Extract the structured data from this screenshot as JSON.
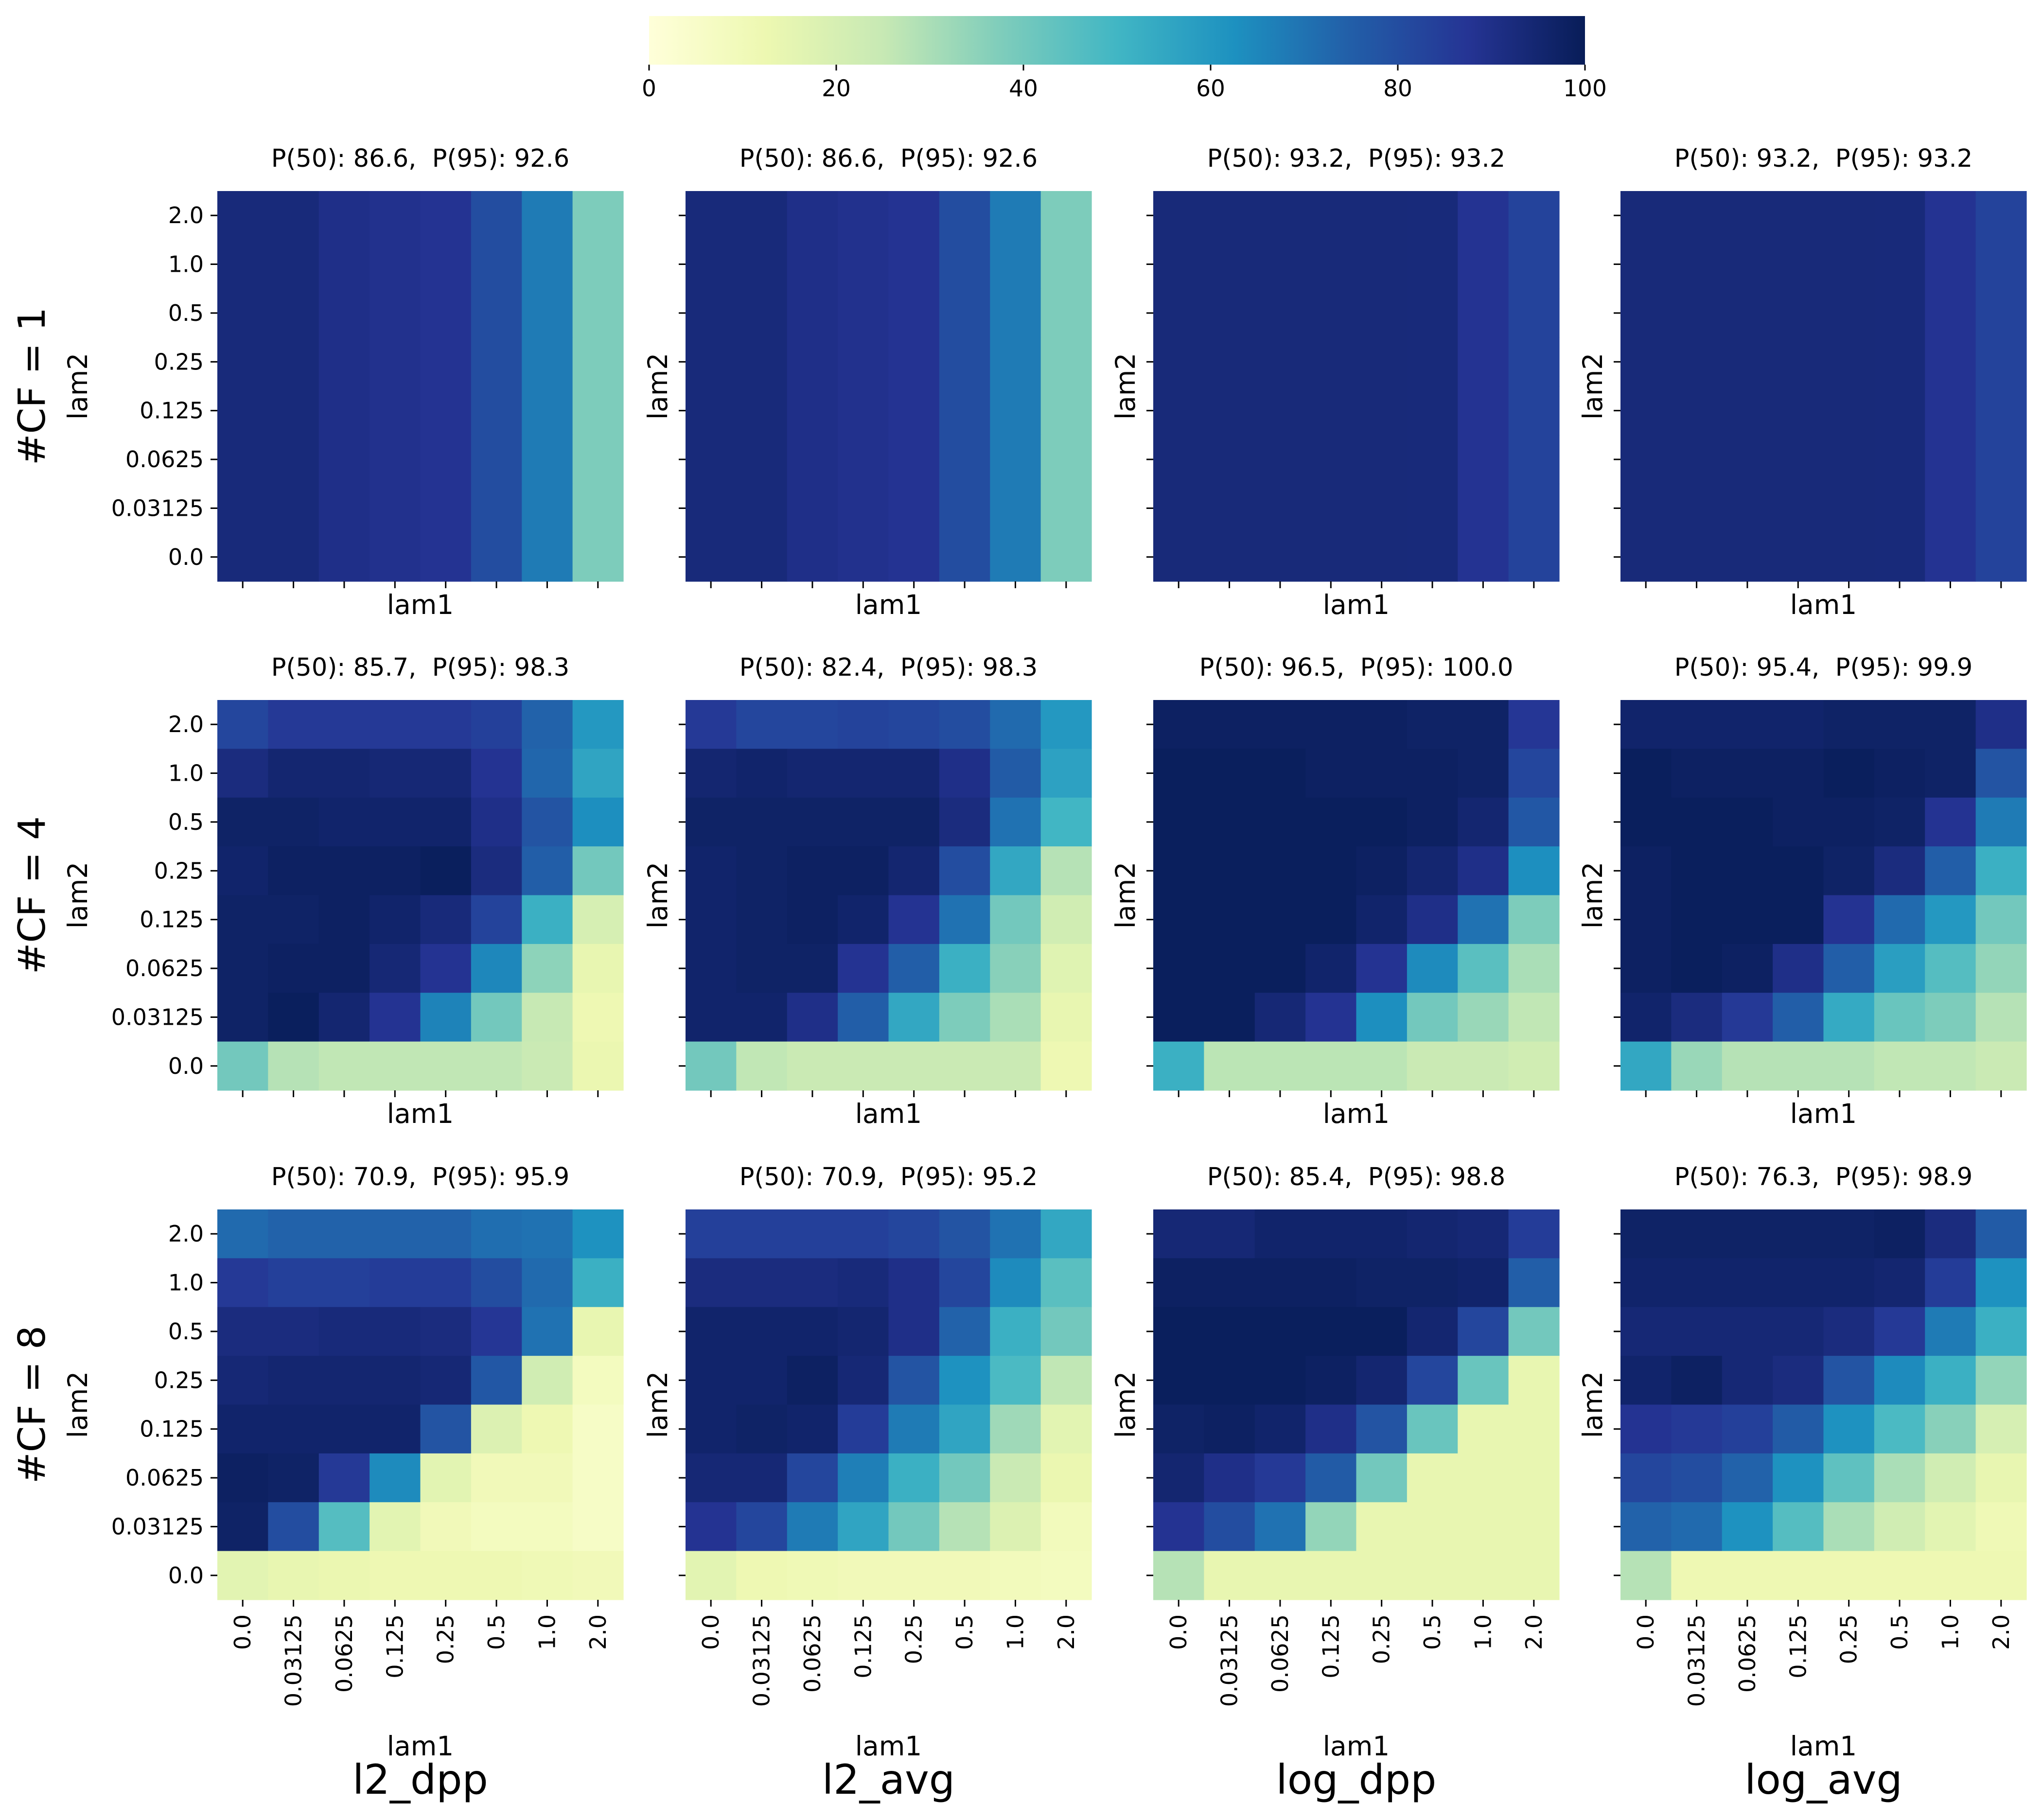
{
  "colorbar": {
    "colormap": "YlGnBu",
    "min": 0,
    "max": 100,
    "ticks": [
      "0",
      "20",
      "40",
      "60",
      "80",
      "100"
    ],
    "colors": [
      "#ffffd9",
      "#edf8b1",
      "#c7e9b4",
      "#7fcdbb",
      "#41b6c4",
      "#1d91c0",
      "#225ea8",
      "#253494",
      "#081d58"
    ]
  },
  "chart_data": {
    "type": "heatmap",
    "x_tick_labels": [
      "0.0",
      "0.03125",
      "0.0625",
      "0.125",
      "0.25",
      "0.5",
      "1.0",
      "2.0"
    ],
    "y_tick_labels": [
      "2.0",
      "1.0",
      "0.5",
      "0.25",
      "0.125",
      "0.0625",
      "0.03125",
      "0.0"
    ],
    "xlabel": "lam1",
    "ylabel": "lam2",
    "column_labels": [
      "l2_dpp",
      "l2_avg",
      "log_dpp",
      "log_avg"
    ],
    "row_labels": [
      "#CF = 1",
      "#CF = 4",
      "#CF = 8"
    ],
    "panels": [
      [
        {
          "title": "P(50): 86.6,  P(95): 92.6",
          "values": [
            [
              93,
              93,
              90,
              89,
              88,
              80,
              68,
              38
            ],
            [
              93,
              93,
              90,
              89,
              88,
              80,
              68,
              38
            ],
            [
              93,
              93,
              90,
              89,
              88,
              80,
              68,
              38
            ],
            [
              93,
              93,
              90,
              89,
              88,
              80,
              68,
              38
            ],
            [
              93,
              93,
              90,
              89,
              88,
              80,
              68,
              38
            ],
            [
              93,
              93,
              90,
              89,
              88,
              80,
              68,
              38
            ],
            [
              93,
              93,
              90,
              89,
              88,
              80,
              68,
              38
            ],
            [
              93,
              93,
              90,
              89,
              88,
              80,
              68,
              38
            ]
          ]
        },
        {
          "title": "P(50): 86.6,  P(95): 92.6",
          "values": [
            [
              93,
              93,
              90,
              89,
              88,
              80,
              68,
              38
            ],
            [
              93,
              93,
              90,
              89,
              88,
              80,
              68,
              38
            ],
            [
              93,
              93,
              90,
              89,
              88,
              80,
              68,
              38
            ],
            [
              93,
              93,
              90,
              89,
              88,
              80,
              68,
              38
            ],
            [
              93,
              93,
              90,
              89,
              88,
              80,
              68,
              38
            ],
            [
              93,
              93,
              90,
              89,
              88,
              80,
              68,
              38
            ],
            [
              93,
              93,
              90,
              89,
              88,
              80,
              68,
              38
            ],
            [
              93,
              93,
              90,
              89,
              88,
              80,
              68,
              38
            ]
          ]
        },
        {
          "title": "P(50): 93.2,  P(95): 93.2",
          "values": [
            [
              93.2,
              93.2,
              93.2,
              93.2,
              93.2,
              93,
              88,
              83
            ],
            [
              93.2,
              93.2,
              93.2,
              93.2,
              93.2,
              93,
              88,
              83
            ],
            [
              93.2,
              93.2,
              93.2,
              93.2,
              93.2,
              93,
              88,
              83
            ],
            [
              93.2,
              93.2,
              93.2,
              93.2,
              93.2,
              93,
              88,
              83
            ],
            [
              93.2,
              93.2,
              93.2,
              93.2,
              93.2,
              93,
              88,
              83
            ],
            [
              93.2,
              93.2,
              93.2,
              93.2,
              93.2,
              93,
              88,
              83
            ],
            [
              93.2,
              93.2,
              93.2,
              93.2,
              93.2,
              93,
              88,
              83
            ],
            [
              93.2,
              93.2,
              93.2,
              93.2,
              93.2,
              93,
              88,
              83
            ]
          ]
        },
        {
          "title": "P(50): 93.2,  P(95): 93.2",
          "values": [
            [
              93.2,
              93.2,
              93.2,
              93.2,
              93.2,
              93,
              88,
              83
            ],
            [
              93.2,
              93.2,
              93.2,
              93.2,
              93.2,
              93,
              88,
              83
            ],
            [
              93.2,
              93.2,
              93.2,
              93.2,
              93.2,
              93,
              88,
              83
            ],
            [
              93.2,
              93.2,
              93.2,
              93.2,
              93.2,
              93,
              88,
              83
            ],
            [
              93.2,
              93.2,
              93.2,
              93.2,
              93.2,
              93,
              88,
              83
            ],
            [
              93.2,
              93.2,
              93.2,
              93.2,
              93.2,
              93,
              88,
              83
            ],
            [
              93.2,
              93.2,
              93.2,
              93.2,
              93.2,
              93,
              88,
              83
            ],
            [
              93.2,
              93.2,
              93.2,
              93.2,
              93.2,
              93,
              88,
              83
            ]
          ]
        }
      ],
      [
        {
          "title": "P(50): 85.7,  P(95): 98.3",
          "values": [
            [
              82,
              86,
              86,
              86,
              86,
              84,
              74,
              60
            ],
            [
              92,
              95,
              95,
              94,
              94,
              88,
              73,
              56
            ],
            [
              97,
              97,
              96,
              96,
              96,
              90,
              78,
              63
            ],
            [
              96,
              98,
              98,
              98,
              99,
              92,
              75,
              40
            ],
            [
              97,
              97,
              98,
              96,
              93,
              83,
              52,
              20
            ],
            [
              97,
              98,
              98,
              94,
              88,
              65,
              35,
              14
            ],
            [
              97,
              99,
              95,
              88,
              66,
              40,
              25,
              12
            ],
            [
              40,
              28,
              26,
              26,
              26,
              26,
              24,
              13
            ]
          ]
        },
        {
          "title": "P(50): 82.4,  P(95): 98.3",
          "values": [
            [
              86,
              82,
              82,
              83,
              82,
              80,
              72,
              60
            ],
            [
              95,
              96,
              95,
              95,
              95,
              90,
              76,
              57
            ],
            [
              97,
              97,
              97,
              97,
              97,
              92,
              70,
              50
            ],
            [
              96,
              97,
              98,
              98,
              95,
              80,
              55,
              28
            ],
            [
              96,
              97,
              98,
              96,
              88,
              70,
              40,
              22
            ],
            [
              96,
              97,
              97,
              88,
              75,
              52,
              36,
              17
            ],
            [
              96,
              96,
              90,
              75,
              55,
              38,
              30,
              14
            ],
            [
              40,
              26,
              24,
              24,
              24,
              24,
              24,
              12
            ]
          ]
        },
        {
          "title": "P(50): 96.5,  P(95): 100.0",
          "values": [
            [
              98,
              98,
              98,
              98,
              98,
              97,
              97,
              87
            ],
            [
              99,
              99,
              99,
              98,
              98,
              98,
              97,
              82
            ],
            [
              99,
              99,
              99,
              99,
              99,
              98,
              95,
              77
            ],
            [
              99,
              99,
              99,
              99,
              98,
              95,
              90,
              63
            ],
            [
              99,
              99,
              99,
              99,
              96,
              90,
              70,
              38
            ],
            [
              99,
              99,
              99,
              96,
              88,
              64,
              45,
              30
            ],
            [
              99,
              99,
              94,
              88,
              63,
              40,
              33,
              26
            ],
            [
              52,
              27,
              27,
              27,
              27,
              24,
              24,
              22
            ]
          ]
        },
        {
          "title": "P(50): 95.4,  P(95): 99.9",
          "values": [
            [
              96,
              96,
              96,
              96,
              97,
              97,
              97,
              90
            ],
            [
              99,
              98,
              98,
              98,
              99,
              98,
              97,
              78
            ],
            [
              99,
              99,
              99,
              98,
              98,
              97,
              88,
              68
            ],
            [
              98,
              99,
              99,
              99,
              97,
              92,
              75,
              52
            ],
            [
              98,
              99,
              99,
              99,
              88,
              72,
              60,
              40
            ],
            [
              98,
              99,
              98,
              90,
              75,
              58,
              46,
              34
            ],
            [
              96,
              92,
              86,
              75,
              54,
              42,
              38,
              28
            ],
            [
              55,
              33,
              28,
              28,
              28,
              26,
              26,
              24
            ]
          ]
        }
      ],
      [
        {
          "title": "P(50): 70.9,  P(95): 95.9",
          "values": [
            [
              72,
              74,
              74,
              74,
              74,
              71,
              70,
              62
            ],
            [
              86,
              84,
              84,
              85,
              85,
              80,
              72,
              52
            ],
            [
              92,
              92,
              93,
              93,
              92,
              87,
              70,
              14
            ],
            [
              94,
              95,
              95,
              95,
              94,
              77,
              22,
              8
            ],
            [
              96,
              96,
              96,
              96,
              78,
              18,
              12,
              6
            ],
            [
              98,
              97,
              86,
              64,
              16,
              10,
              10,
              6
            ],
            [
              97,
              80,
              46,
              16,
              10,
              8,
              8,
              6
            ],
            [
              16,
              14,
              13,
              12,
              12,
              12,
              11,
              10
            ]
          ]
        },
        {
          "title": "P(50): 70.9,  P(95): 95.2",
          "values": [
            [
              84,
              84,
              84,
              84,
              82,
              78,
              70,
              55
            ],
            [
              92,
              92,
              92,
              93,
              90,
              82,
              64,
              45
            ],
            [
              96,
              96,
              96,
              95,
              90,
              74,
              52,
              40
            ],
            [
              96,
              96,
              98,
              94,
              78,
              62,
              48,
              26
            ],
            [
              96,
              97,
              96,
              85,
              68,
              56,
              32,
              16
            ],
            [
              94,
              94,
              82,
              67,
              52,
              40,
              24,
              13
            ],
            [
              88,
              82,
              68,
              56,
              40,
              28,
              18,
              9
            ],
            [
              16,
              12,
              11,
              10,
              10,
              10,
              9,
              8
            ]
          ]
        },
        {
          "title": "P(50): 85.4,  P(95): 98.8",
          "values": [
            [
              94,
              94,
              96,
              96,
              96,
              95,
              94,
              85
            ],
            [
              98,
              98,
              98,
              98,
              97,
              97,
              96,
              75
            ],
            [
              99,
              99,
              99,
              99,
              99,
              95,
              82,
              40
            ],
            [
              99,
              99,
              99,
              98,
              95,
              82,
              42,
              14
            ],
            [
              97,
              98,
              96,
              90,
              78,
              42,
              14,
              14
            ],
            [
              95,
              90,
              86,
              76,
              40,
              14,
              14,
              14
            ],
            [
              88,
              80,
              70,
              34,
              14,
              14,
              14,
              14
            ],
            [
              28,
              14,
              14,
              14,
              14,
              14,
              14,
              14
            ]
          ]
        },
        {
          "title": "P(50): 76.3,  P(95): 98.9",
          "values": [
            [
              97,
              97,
              97,
              97,
              97,
              98,
              92,
              76
            ],
            [
              96,
              96,
              96,
              96,
              96,
              95,
              85,
              62
            ],
            [
              94,
              94,
              94,
              94,
              92,
              86,
              68,
              52
            ],
            [
              96,
              98,
              94,
              92,
              78,
              64,
              52,
              34
            ],
            [
              88,
              86,
              84,
              76,
              62,
              48,
              36,
              20
            ],
            [
              82,
              80,
              74,
              62,
              44,
              30,
              22,
              14
            ],
            [
              74,
              72,
              62,
              46,
              30,
              22,
              16,
              11
            ],
            [
              28,
              12,
              12,
              12,
              12,
              12,
              12,
              12
            ]
          ]
        }
      ]
    ]
  }
}
